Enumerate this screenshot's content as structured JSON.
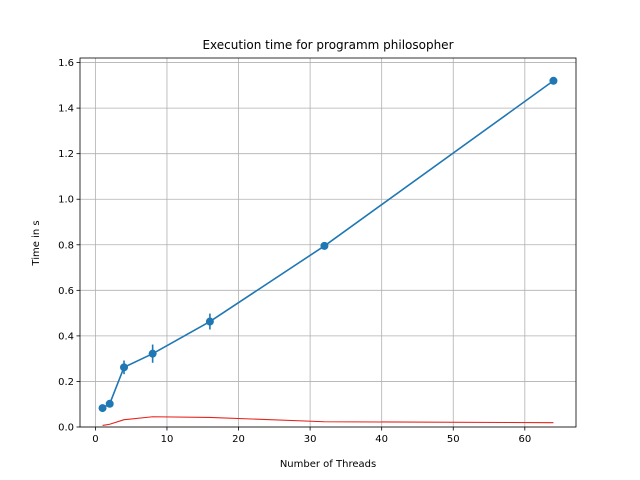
{
  "chart_data": {
    "type": "line",
    "title": "Execution time for programm philosopher",
    "xlabel": "Number of Threads",
    "ylabel": "Time in s",
    "xlim": [
      -2.15,
      67.15
    ],
    "ylim": [
      0,
      1.62
    ],
    "xticks": [
      0,
      10,
      20,
      30,
      40,
      50,
      60
    ],
    "yticks": [
      0.0,
      0.2,
      0.4,
      0.6,
      0.8,
      1.0,
      1.2,
      1.4,
      1.6
    ],
    "xtick_labels": [
      "0",
      "10",
      "20",
      "30",
      "40",
      "50",
      "60"
    ],
    "ytick_labels": [
      "0.0",
      "0.2",
      "0.4",
      "0.6",
      "0.8",
      "1.0",
      "1.2",
      "1.4",
      "1.6"
    ],
    "grid": true,
    "series": [
      {
        "color": "#1f77b4",
        "markers": true,
        "x": [
          1,
          2,
          4,
          8,
          16,
          32,
          64
        ],
        "y": [
          0.083,
          0.102,
          0.262,
          0.322,
          0.463,
          0.795,
          1.52
        ],
        "error": [
          0.005,
          0.01,
          0.03,
          0.04,
          0.035,
          0.01,
          0.015
        ]
      },
      {
        "color": "#e8221c",
        "markers": false,
        "x": [
          1,
          2,
          4,
          8,
          16,
          32,
          64
        ],
        "y": [
          0.007,
          0.012,
          0.032,
          0.045,
          0.042,
          0.023,
          0.019
        ]
      }
    ]
  }
}
